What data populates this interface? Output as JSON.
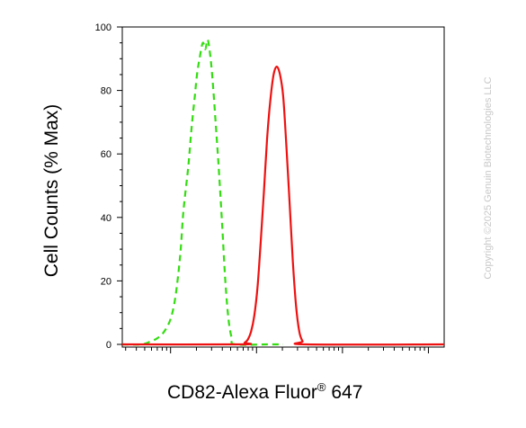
{
  "chart_data": {
    "type": "line",
    "xlabel": "CD82-Alexa Fluor",
    "xlabel_sup": "®",
    "xlabel_suffix": " 647",
    "ylabel": "Cell Counts (% Max)",
    "x_scale": "log",
    "ylim": [
      0,
      100
    ],
    "y_ticks": [
      0,
      20,
      40,
      60,
      80,
      100
    ],
    "y_tick_labels": [
      "0",
      "20",
      "40",
      "60",
      "80",
      "100"
    ],
    "x_tick_labels": [],
    "grid": false,
    "series": [
      {
        "color": "#33dd11",
        "style": "dashed",
        "points": [
          [
            0.0,
            0
          ],
          [
            0.06,
            0
          ],
          [
            0.09,
            1
          ],
          [
            0.11,
            2
          ],
          [
            0.13,
            4
          ],
          [
            0.15,
            8
          ],
          [
            0.165,
            15
          ],
          [
            0.18,
            28
          ],
          [
            0.19,
            42
          ],
          [
            0.205,
            56
          ],
          [
            0.215,
            68
          ],
          [
            0.225,
            78
          ],
          [
            0.232,
            85
          ],
          [
            0.24,
            90
          ],
          [
            0.25,
            95
          ],
          [
            0.258,
            93
          ],
          [
            0.265,
            96
          ],
          [
            0.272,
            92
          ],
          [
            0.28,
            84
          ],
          [
            0.29,
            70
          ],
          [
            0.3,
            55
          ],
          [
            0.31,
            38
          ],
          [
            0.32,
            20
          ],
          [
            0.33,
            8
          ],
          [
            0.34,
            2
          ],
          [
            0.35,
            0
          ],
          [
            0.45,
            0
          ],
          [
            0.5,
            0
          ]
        ]
      },
      {
        "color": "#ee1111",
        "style": "solid",
        "points": [
          [
            0.0,
            0
          ],
          [
            0.37,
            0
          ],
          [
            0.38,
            0.5
          ],
          [
            0.39,
            1.5
          ],
          [
            0.4,
            4
          ],
          [
            0.41,
            9
          ],
          [
            0.42,
            18
          ],
          [
            0.43,
            32
          ],
          [
            0.44,
            48
          ],
          [
            0.45,
            65
          ],
          [
            0.46,
            77
          ],
          [
            0.47,
            85
          ],
          [
            0.48,
            87.5
          ],
          [
            0.49,
            85
          ],
          [
            0.5,
            78
          ],
          [
            0.51,
            62
          ],
          [
            0.52,
            44
          ],
          [
            0.53,
            26
          ],
          [
            0.54,
            12
          ],
          [
            0.55,
            4
          ],
          [
            0.56,
            1
          ],
          [
            0.57,
            0
          ],
          [
            1.0,
            0
          ]
        ]
      }
    ]
  },
  "copyright": "Copyright ©2025 Genuin Biotechnologies LLC"
}
